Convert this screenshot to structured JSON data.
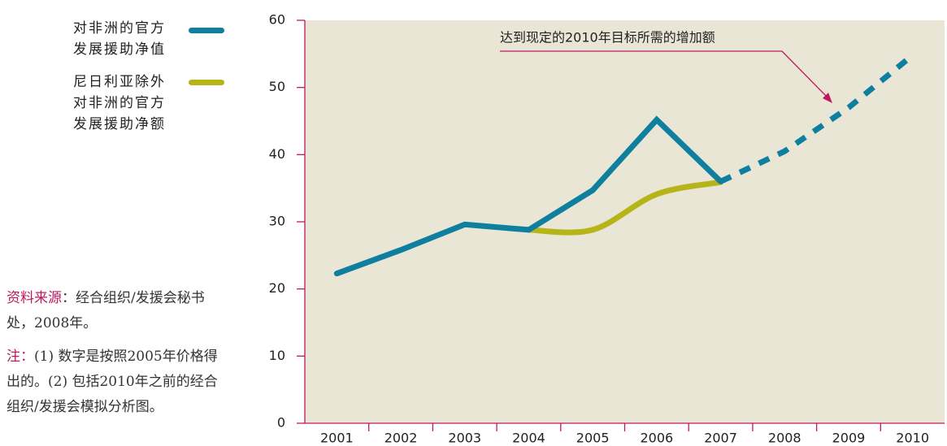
{
  "chart_data": {
    "type": "line",
    "categories": [
      "2001",
      "2002",
      "2003",
      "2004",
      "2005",
      "2006",
      "2007",
      "2008",
      "2009",
      "2010"
    ],
    "series": [
      {
        "name": "对非洲的官方发展援助净值",
        "color": "#0f7fa0",
        "values": [
          22.3,
          25.8,
          29.6,
          28.8,
          34.7,
          45.2,
          36.0,
          null,
          null,
          null
        ]
      },
      {
        "name": "尼日利亚除外对非洲的官方发展援助净额",
        "color": "#b5b51a",
        "smooth": true,
        "values": [
          null,
          null,
          null,
          28.8,
          28.8,
          34.1,
          35.9,
          null,
          null,
          null
        ]
      },
      {
        "color": "#0f7fa0",
        "style": "dashed",
        "values": [
          null,
          null,
          null,
          null,
          null,
          null,
          36.0,
          40.5,
          47.0,
          54.8
        ]
      }
    ],
    "ylim": [
      0,
      60
    ],
    "yticks": [
      0,
      10,
      20,
      30,
      40,
      50,
      60
    ],
    "annotation": "达到现定的2010年目标所需的增加额",
    "source_label": "资料来源",
    "source_text": "：经合组织/发援会秘书处，2008年。",
    "note_label": "注：",
    "note_text": "(1) 数字是按照2005年价格得出的。(2) 包括2010年之前的经合组织/发援会模拟分析图。"
  }
}
